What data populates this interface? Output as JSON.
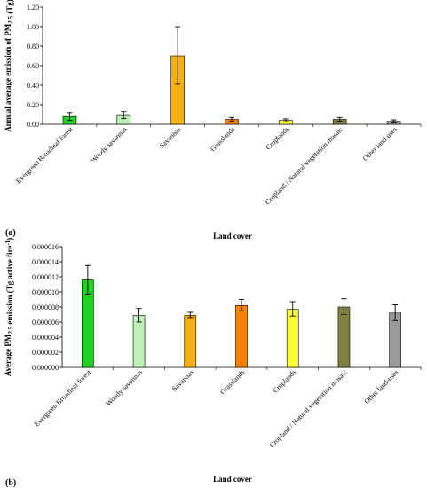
{
  "chart_data": [
    {
      "type": "bar",
      "panel_label": "(a)",
      "title": "",
      "xlabel": "Land cover",
      "ylabel": "Annual average emission of PM2.5 (Tg)",
      "ylim": [
        0,
        1.2
      ],
      "yticks": [
        "0.00",
        "0.20",
        "0.40",
        "0.60",
        "0.80",
        "1.00",
        "1.20"
      ],
      "grid": false,
      "categories": [
        "Evergreen Broadleaf forest",
        "Woody savannas",
        "Savannas",
        "Grasslands",
        "Croplands",
        "Cropland / Natural vegetation mosaic",
        "Other land-uses"
      ],
      "values": [
        0.08,
        0.09,
        0.7,
        0.05,
        0.04,
        0.05,
        0.03
      ],
      "error_low": [
        0.04,
        0.06,
        0.41,
        0.03,
        0.025,
        0.03,
        0.015
      ],
      "error_high": [
        0.12,
        0.13,
        1.0,
        0.07,
        0.055,
        0.07,
        0.045
      ],
      "colors": [
        "#22d222",
        "#bff0b9",
        "#f9b012",
        "#ff8000",
        "#ffff33",
        "#808040",
        "#9a9a9a"
      ]
    },
    {
      "type": "bar",
      "panel_label": "(b)",
      "title": "",
      "xlabel": "Land cover",
      "ylabel": "Average PM2.5 emission (Tg active fire-1)",
      "ylim": [
        0,
        1.6e-05
      ],
      "yticks": [
        "0.000000",
        "0.000002",
        "0.000004",
        "0.000006",
        "0.000008",
        "0.000010",
        "0.000012",
        "0.000014",
        "0.000016"
      ],
      "grid": false,
      "categories": [
        "Evergreen Broadleaf forest",
        "Woody savannas",
        "Savannas",
        "Grasslands",
        "Croplands",
        "Cropland / Natural vegetation mosaic",
        "Other land-uses"
      ],
      "values": [
        1.16e-05,
        6.9e-06,
        6.9e-06,
        8.2e-06,
        7.7e-06,
        8e-06,
        7.2e-06
      ],
      "error_low": [
        9.7e-06,
        6e-06,
        6.6e-06,
        7.5e-06,
        6.8e-06,
        7e-06,
        6.2e-06
      ],
      "error_high": [
        1.35e-05,
        7.8e-06,
        7.3e-06,
        9e-06,
        8.7e-06,
        9.1e-06,
        8.3e-06
      ],
      "colors": [
        "#22d222",
        "#bff0b9",
        "#f9b012",
        "#ff8000",
        "#ffff33",
        "#808040",
        "#9a9a9a"
      ]
    }
  ]
}
